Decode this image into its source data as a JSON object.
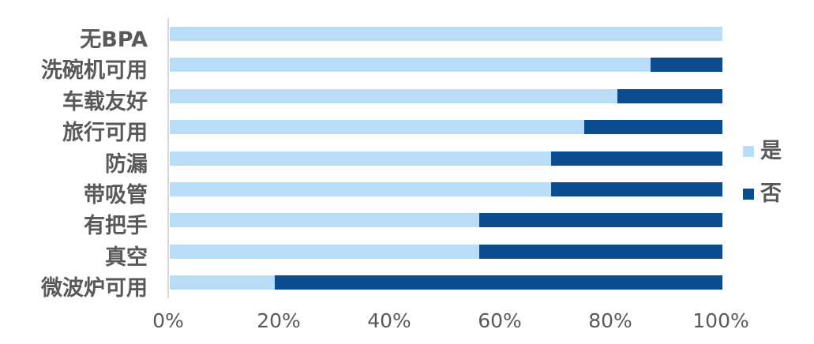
{
  "chart_data": {
    "type": "bar",
    "orientation": "horizontal",
    "stacked": true,
    "stacked_total": 100,
    "title": "",
    "categories": [
      "无BPA",
      "洗碗机可用",
      "车载友好",
      "旅行可用",
      "防漏",
      "带吸管",
      "有把手",
      "真空",
      "微波炉可用"
    ],
    "series": [
      {
        "name": "是",
        "color": "#b9ddf6",
        "values": [
          100,
          87,
          81,
          75,
          69,
          69,
          56,
          56,
          19
        ]
      },
      {
        "name": "否",
        "color": "#0b4b8f",
        "values": [
          0,
          13,
          19,
          25,
          31,
          31,
          44,
          44,
          81
        ]
      }
    ],
    "x_ticks": [
      "0%",
      "20%",
      "40%",
      "60%",
      "80%",
      "100%"
    ],
    "xlim": [
      0,
      100
    ],
    "grid": false,
    "legend_position": "right"
  },
  "colors": {
    "axis_line": "#d9d9d9",
    "text": "#595959",
    "background": "#ffffff"
  }
}
